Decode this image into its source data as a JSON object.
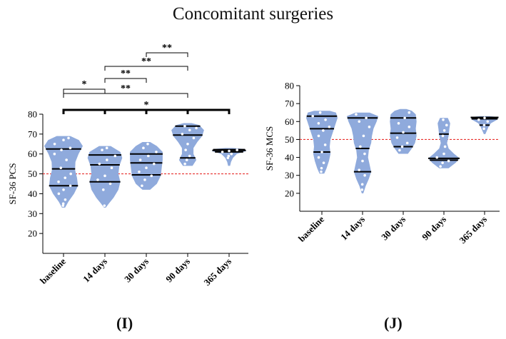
{
  "figure": {
    "title": "Concomitant surgeries",
    "panel_labels": [
      "(I)",
      "(J)"
    ],
    "violin_fill": "#8faadc",
    "point_color": "#ffffff",
    "reference_line_color": "#e8312f",
    "median_color": "#000000"
  },
  "chart_data": [
    {
      "type": "violin",
      "panel": "(I)",
      "ylabel": "SF-36 PCS",
      "xlabel": "",
      "ylim": [
        10,
        80
      ],
      "yticks": [
        20,
        30,
        40,
        50,
        60,
        70,
        80
      ],
      "categories": [
        "baseline",
        "14 days",
        "30 days",
        "90 days",
        "365 days"
      ],
      "reference_line": 50,
      "violins": [
        {
          "category": "baseline",
          "min": 33,
          "max": 69,
          "q1": 44,
          "median": 52.5,
          "q3": 62.5,
          "profile": [
            [
              33,
              0.08
            ],
            [
              36,
              0.25
            ],
            [
              40,
              0.55
            ],
            [
              44,
              0.75
            ],
            [
              48,
              0.7
            ],
            [
              52,
              0.6
            ],
            [
              56,
              0.62
            ],
            [
              60,
              0.78
            ],
            [
              64,
              1.0
            ],
            [
              67,
              0.8
            ],
            [
              69,
              0.35
            ]
          ],
          "points": [
            34,
            35,
            37,
            40,
            42,
            44,
            46,
            48,
            50,
            53,
            57,
            60,
            62,
            63,
            65,
            67,
            68
          ]
        },
        {
          "category": "14 days",
          "min": 33,
          "max": 64,
          "q1": 46,
          "median": 54.5,
          "q3": 59.5,
          "profile": [
            [
              33,
              0.05
            ],
            [
              35,
              0.2
            ],
            [
              38,
              0.45
            ],
            [
              42,
              0.7
            ],
            [
              46,
              0.8
            ],
            [
              50,
              0.7
            ],
            [
              54,
              0.75
            ],
            [
              58,
              0.9
            ],
            [
              61,
              0.8
            ],
            [
              64,
              0.3
            ]
          ],
          "points": [
            34,
            42,
            45,
            47,
            49,
            53,
            55,
            57,
            59,
            62,
            63
          ]
        },
        {
          "category": "30 days",
          "min": 42,
          "max": 66,
          "q1": 49.5,
          "median": 55.5,
          "q3": 60,
          "profile": [
            [
              42,
              0.2
            ],
            [
              45,
              0.55
            ],
            [
              49,
              0.75
            ],
            [
              53,
              0.8
            ],
            [
              57,
              0.85
            ],
            [
              61,
              0.85
            ],
            [
              64,
              0.55
            ],
            [
              66,
              0.2
            ]
          ],
          "points": [
            44,
            47,
            49,
            51,
            53,
            55,
            57,
            59,
            61,
            63,
            65
          ]
        },
        {
          "category": "90 days",
          "min": 54,
          "max": 75,
          "q1": 58,
          "median": 69.5,
          "q3": 74,
          "profile": [
            [
              54,
              0.25
            ],
            [
              57,
              0.45
            ],
            [
              60,
              0.3
            ],
            [
              63,
              0.3
            ],
            [
              66,
              0.5
            ],
            [
              69,
              0.75
            ],
            [
              72,
              0.85
            ],
            [
              74.5,
              0.6
            ],
            [
              75.5,
              0.2
            ]
          ],
          "points": [
            55,
            57,
            59,
            62,
            65,
            68,
            70,
            72,
            73,
            74
          ]
        },
        {
          "category": "365 days",
          "min": 54,
          "max": 62.5,
          "q1": 61,
          "median": 61.8,
          "q3": 62.2,
          "profile": [
            [
              54,
              0.05
            ],
            [
              56,
              0.1
            ],
            [
              58,
              0.2
            ],
            [
              60,
              0.4
            ],
            [
              61.5,
              0.9
            ],
            [
              62.5,
              0.8
            ],
            [
              63,
              0.2
            ]
          ],
          "points": [
            58,
            59,
            60,
            61,
            61.5,
            62
          ]
        }
      ],
      "significance": [
        {
          "from": "baseline",
          "to": "14 days",
          "label": "*"
        },
        {
          "from": "14 days",
          "to": "30 days",
          "label": "**"
        },
        {
          "from": "30 days",
          "to": "90 days",
          "label": "**"
        },
        {
          "from": "14 days",
          "to": "90 days",
          "label": "**"
        },
        {
          "from": "baseline",
          "to": "90 days",
          "label": "**"
        },
        {
          "from": "baseline",
          "to": "365 days",
          "label": "*"
        }
      ]
    },
    {
      "type": "violin",
      "panel": "(J)",
      "ylabel": "SF-36 MCS",
      "xlabel": "",
      "ylim": [
        10,
        80
      ],
      "yticks": [
        20,
        30,
        40,
        50,
        60,
        70,
        80
      ],
      "categories": [
        "baseline",
        "14 days",
        "30 days",
        "90 days",
        "365 days"
      ],
      "reference_line": 50,
      "violins": [
        {
          "category": "baseline",
          "min": 31,
          "max": 66,
          "q1": 43,
          "median": 56,
          "q3": 63,
          "profile": [
            [
              31,
              0.15
            ],
            [
              34,
              0.3
            ],
            [
              38,
              0.45
            ],
            [
              42,
              0.55
            ],
            [
              46,
              0.5
            ],
            [
              50,
              0.55
            ],
            [
              54,
              0.7
            ],
            [
              58,
              0.85
            ],
            [
              62,
              1.0
            ],
            [
              65,
              0.9
            ],
            [
              66,
              0.5
            ]
          ],
          "points": [
            32,
            34,
            37,
            40,
            43,
            47,
            52,
            55,
            57,
            59,
            61,
            63,
            65
          ]
        },
        {
          "category": "14 days",
          "min": 20,
          "max": 65,
          "q1": 32,
          "median": 45,
          "q3": 62,
          "profile": [
            [
              20,
              0.05
            ],
            [
              24,
              0.2
            ],
            [
              28,
              0.4
            ],
            [
              32,
              0.55
            ],
            [
              36,
              0.45
            ],
            [
              40,
              0.35
            ],
            [
              44,
              0.4
            ],
            [
              48,
              0.55
            ],
            [
              52,
              0.6
            ],
            [
              56,
              0.7
            ],
            [
              60,
              0.9
            ],
            [
              63,
              1.0
            ],
            [
              65,
              0.45
            ]
          ],
          "points": [
            22,
            25,
            30,
            33,
            38,
            42,
            46,
            52,
            57,
            60,
            62,
            64
          ]
        },
        {
          "category": "30 days",
          "min": 42,
          "max": 67,
          "q1": 46,
          "median": 53.5,
          "q3": 62,
          "profile": [
            [
              42,
              0.3
            ],
            [
              45,
              0.55
            ],
            [
              48,
              0.75
            ],
            [
              52,
              0.85
            ],
            [
              56,
              0.8
            ],
            [
              60,
              0.85
            ],
            [
              64,
              0.8
            ],
            [
              66,
              0.55
            ],
            [
              67,
              0.2
            ]
          ],
          "points": [
            44,
            46,
            48,
            51,
            54,
            57,
            59,
            62,
            65
          ]
        },
        {
          "category": "90 days",
          "min": 34,
          "max": 62,
          "q1": 38.5,
          "median": 39.5,
          "q3": 53,
          "profile": [
            [
              34,
              0.3
            ],
            [
              37,
              0.75
            ],
            [
              39.5,
              1.0
            ],
            [
              42,
              0.65
            ],
            [
              45,
              0.3
            ],
            [
              48,
              0.2
            ],
            [
              52,
              0.3
            ],
            [
              56,
              0.35
            ],
            [
              59,
              0.4
            ],
            [
              62,
              0.25
            ]
          ],
          "points": [
            35,
            37,
            38,
            40,
            42,
            46,
            52,
            55,
            58,
            61
          ]
        },
        {
          "category": "365 days",
          "min": 53,
          "max": 63,
          "q1": 58,
          "median": 61.5,
          "q3": 62.3,
          "profile": [
            [
              53,
              0.05
            ],
            [
              55,
              0.15
            ],
            [
              57,
              0.25
            ],
            [
              59,
              0.4
            ],
            [
              61,
              0.8
            ],
            [
              62.5,
              0.9
            ],
            [
              63,
              0.3
            ]
          ],
          "points": [
            56,
            58,
            60,
            61,
            62
          ]
        }
      ]
    }
  ]
}
